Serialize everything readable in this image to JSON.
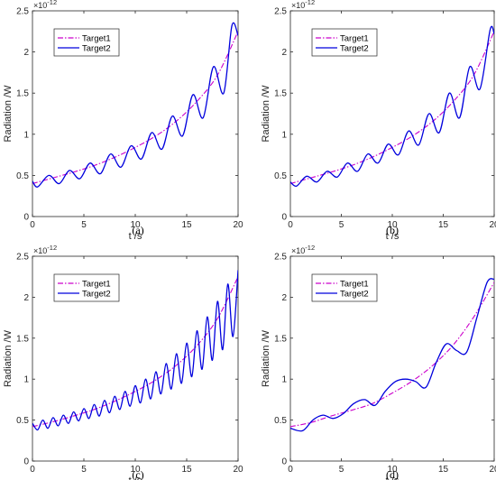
{
  "figure": {
    "panels": [
      {
        "caption": "(a)",
        "xlabel": "t /s",
        "ylabel": "Radiation /W",
        "exponent_base": "×10",
        "exponent": "-12"
      },
      {
        "caption": "(b)",
        "xlabel": "t /s",
        "ylabel": "Radiation /W",
        "exponent_base": "×10",
        "exponent": "-12"
      },
      {
        "caption": "(c)",
        "xlabel": "t /s",
        "ylabel": "Radiation /W",
        "exponent_base": "×10",
        "exponent": "-12"
      },
      {
        "caption": "(d)",
        "xlabel": "t /s",
        "ylabel": "Radiation /W",
        "exponent_base": "×10",
        "exponent": "-12"
      }
    ]
  },
  "colors": {
    "target1": "#cc00cc",
    "target2": "#0000dd",
    "axis": "#262626"
  },
  "chart_data": [
    {
      "type": "line",
      "panel": "(a)",
      "title": "",
      "xlabel": "t /s",
      "ylabel": "Radiation /W",
      "xlim": [
        0,
        20
      ],
      "ylim": [
        0,
        2.5
      ],
      "xticks": [
        0,
        5,
        10,
        15,
        20
      ],
      "yticks": [
        0,
        0.5,
        1,
        1.5,
        2,
        2.5
      ],
      "y_multiplier": "×10^-12",
      "grid": false,
      "legend": "top-left",
      "series": [
        {
          "name": "Target1",
          "style": "dash-dot",
          "color": "#cc00cc",
          "x": [
            0,
            2,
            4,
            6,
            8,
            10,
            12,
            14,
            16,
            18,
            20
          ],
          "y": [
            0.4,
            0.47,
            0.54,
            0.62,
            0.72,
            0.84,
            0.98,
            1.16,
            1.4,
            1.72,
            2.25
          ]
        },
        {
          "name": "Target2",
          "style": "solid",
          "color": "#0000dd",
          "oscillation": "fast oscillation with high-frequency ripple at peaks",
          "x": [
            0,
            0.5,
            1.6,
            2.6,
            3.6,
            4.6,
            5.6,
            6.6,
            7.6,
            8.6,
            9.6,
            10.6,
            11.6,
            12.6,
            13.6,
            14.6,
            15.6,
            16.6,
            17.6,
            18.6,
            19.4,
            20
          ],
          "y": [
            0.43,
            0.36,
            0.5,
            0.4,
            0.56,
            0.46,
            0.65,
            0.52,
            0.76,
            0.6,
            0.86,
            0.7,
            1.02,
            0.82,
            1.22,
            0.98,
            1.48,
            1.2,
            1.82,
            1.5,
            2.32,
            2.2
          ]
        }
      ]
    },
    {
      "type": "line",
      "panel": "(b)",
      "title": "",
      "xlabel": "t /s",
      "ylabel": "Radiation /W",
      "xlim": [
        0,
        20
      ],
      "ylim": [
        0,
        2.5
      ],
      "xticks": [
        0,
        5,
        10,
        15,
        20
      ],
      "yticks": [
        0,
        0.5,
        1,
        1.5,
        2,
        2.5
      ],
      "y_multiplier": "×10^-12",
      "grid": false,
      "legend": "top-left",
      "series": [
        {
          "name": "Target1",
          "style": "dash-dot",
          "color": "#cc00cc",
          "x": [
            0,
            2,
            4,
            6,
            8,
            10,
            12,
            14,
            16,
            18,
            20
          ],
          "y": [
            0.4,
            0.47,
            0.54,
            0.62,
            0.72,
            0.84,
            0.98,
            1.16,
            1.4,
            1.72,
            2.25
          ]
        },
        {
          "name": "Target2",
          "style": "solid",
          "color": "#0000dd",
          "oscillation": "smooth oscillation, period about 2 s",
          "x": [
            0,
            0.6,
            1.6,
            2.6,
            3.6,
            4.6,
            5.6,
            6.6,
            7.6,
            8.6,
            9.6,
            10.6,
            11.6,
            12.6,
            13.6,
            14.6,
            15.6,
            16.6,
            17.6,
            18.6,
            19.6,
            20
          ],
          "y": [
            0.42,
            0.37,
            0.49,
            0.42,
            0.55,
            0.48,
            0.65,
            0.55,
            0.76,
            0.65,
            0.88,
            0.75,
            1.04,
            0.87,
            1.25,
            1.02,
            1.5,
            1.2,
            1.82,
            1.55,
            2.27,
            2.22
          ]
        }
      ]
    },
    {
      "type": "line",
      "panel": "(c)",
      "title": "",
      "xlabel": "t /s",
      "ylabel": "Radiation /W",
      "xlim": [
        0,
        20
      ],
      "ylim": [
        0,
        2.5
      ],
      "xticks": [
        0,
        5,
        10,
        15,
        20
      ],
      "yticks": [
        0,
        0.5,
        1,
        1.5,
        2,
        2.5
      ],
      "y_multiplier": "×10^-12",
      "grid": false,
      "legend": "top-left",
      "series": [
        {
          "name": "Target1",
          "style": "dash-dot",
          "color": "#cc00cc",
          "x": [
            0,
            2,
            4,
            6,
            8,
            10,
            12,
            14,
            16,
            18,
            20
          ],
          "y": [
            0.42,
            0.48,
            0.55,
            0.63,
            0.73,
            0.85,
            0.99,
            1.17,
            1.41,
            1.74,
            2.25
          ]
        },
        {
          "name": "Target2",
          "style": "solid",
          "color": "#0000dd",
          "oscillation": "rapid oscillation, period about 1 s, growing amplitude",
          "x": [
            0,
            0.5,
            1.0,
            1.5,
            2.0,
            2.5,
            3.0,
            3.5,
            4.0,
            4.5,
            5.0,
            5.5,
            6.0,
            6.5,
            7.0,
            7.5,
            8.0,
            8.5,
            9.0,
            9.5,
            10.0,
            10.5,
            11.0,
            11.5,
            12.0,
            12.5,
            13.0,
            13.5,
            14.0,
            14.5,
            15.0,
            15.5,
            16.0,
            16.5,
            17.0,
            17.5,
            18.0,
            18.5,
            19.0,
            19.5,
            20.0
          ],
          "y": [
            0.46,
            0.38,
            0.5,
            0.4,
            0.53,
            0.43,
            0.56,
            0.46,
            0.6,
            0.49,
            0.64,
            0.52,
            0.69,
            0.55,
            0.74,
            0.59,
            0.79,
            0.63,
            0.85,
            0.67,
            0.92,
            0.71,
            1.0,
            0.76,
            1.09,
            0.82,
            1.19,
            0.88,
            1.31,
            0.95,
            1.44,
            1.03,
            1.59,
            1.12,
            1.76,
            1.23,
            1.95,
            1.36,
            2.16,
            1.52,
            2.33
          ]
        }
      ]
    },
    {
      "type": "line",
      "panel": "(d)",
      "title": "",
      "xlabel": "t /s",
      "ylabel": "Radiation /W",
      "xlim": [
        0,
        20
      ],
      "ylim": [
        0,
        2.5
      ],
      "xticks": [
        0,
        5,
        10,
        15,
        20
      ],
      "yticks": [
        0,
        0.5,
        1,
        1.5,
        2,
        2.5
      ],
      "y_multiplier": "×10^-12",
      "grid": false,
      "legend": "top-left",
      "series": [
        {
          "name": "Target1",
          "style": "dash-dot",
          "color": "#cc00cc",
          "x": [
            0,
            2,
            4,
            6,
            8,
            10,
            12,
            14,
            16,
            18,
            20
          ],
          "y": [
            0.42,
            0.47,
            0.55,
            0.62,
            0.7,
            0.83,
            0.98,
            1.17,
            1.42,
            1.76,
            2.18
          ]
        },
        {
          "name": "Target2",
          "style": "solid",
          "color": "#0000dd",
          "oscillation": "slow oscillation, period about 4 s",
          "x": [
            0,
            1.2,
            2.2,
            3.2,
            4.2,
            5.2,
            6.2,
            7.3,
            8.3,
            9.3,
            10.3,
            11.3,
            12.3,
            13.3,
            14.3,
            15.3,
            16.3,
            17.3,
            18.3,
            19.3,
            20
          ],
          "y": [
            0.4,
            0.37,
            0.5,
            0.56,
            0.52,
            0.58,
            0.7,
            0.75,
            0.68,
            0.85,
            0.97,
            1.0,
            0.97,
            0.9,
            1.2,
            1.43,
            1.35,
            1.33,
            1.75,
            2.18,
            2.22
          ]
        }
      ]
    }
  ]
}
